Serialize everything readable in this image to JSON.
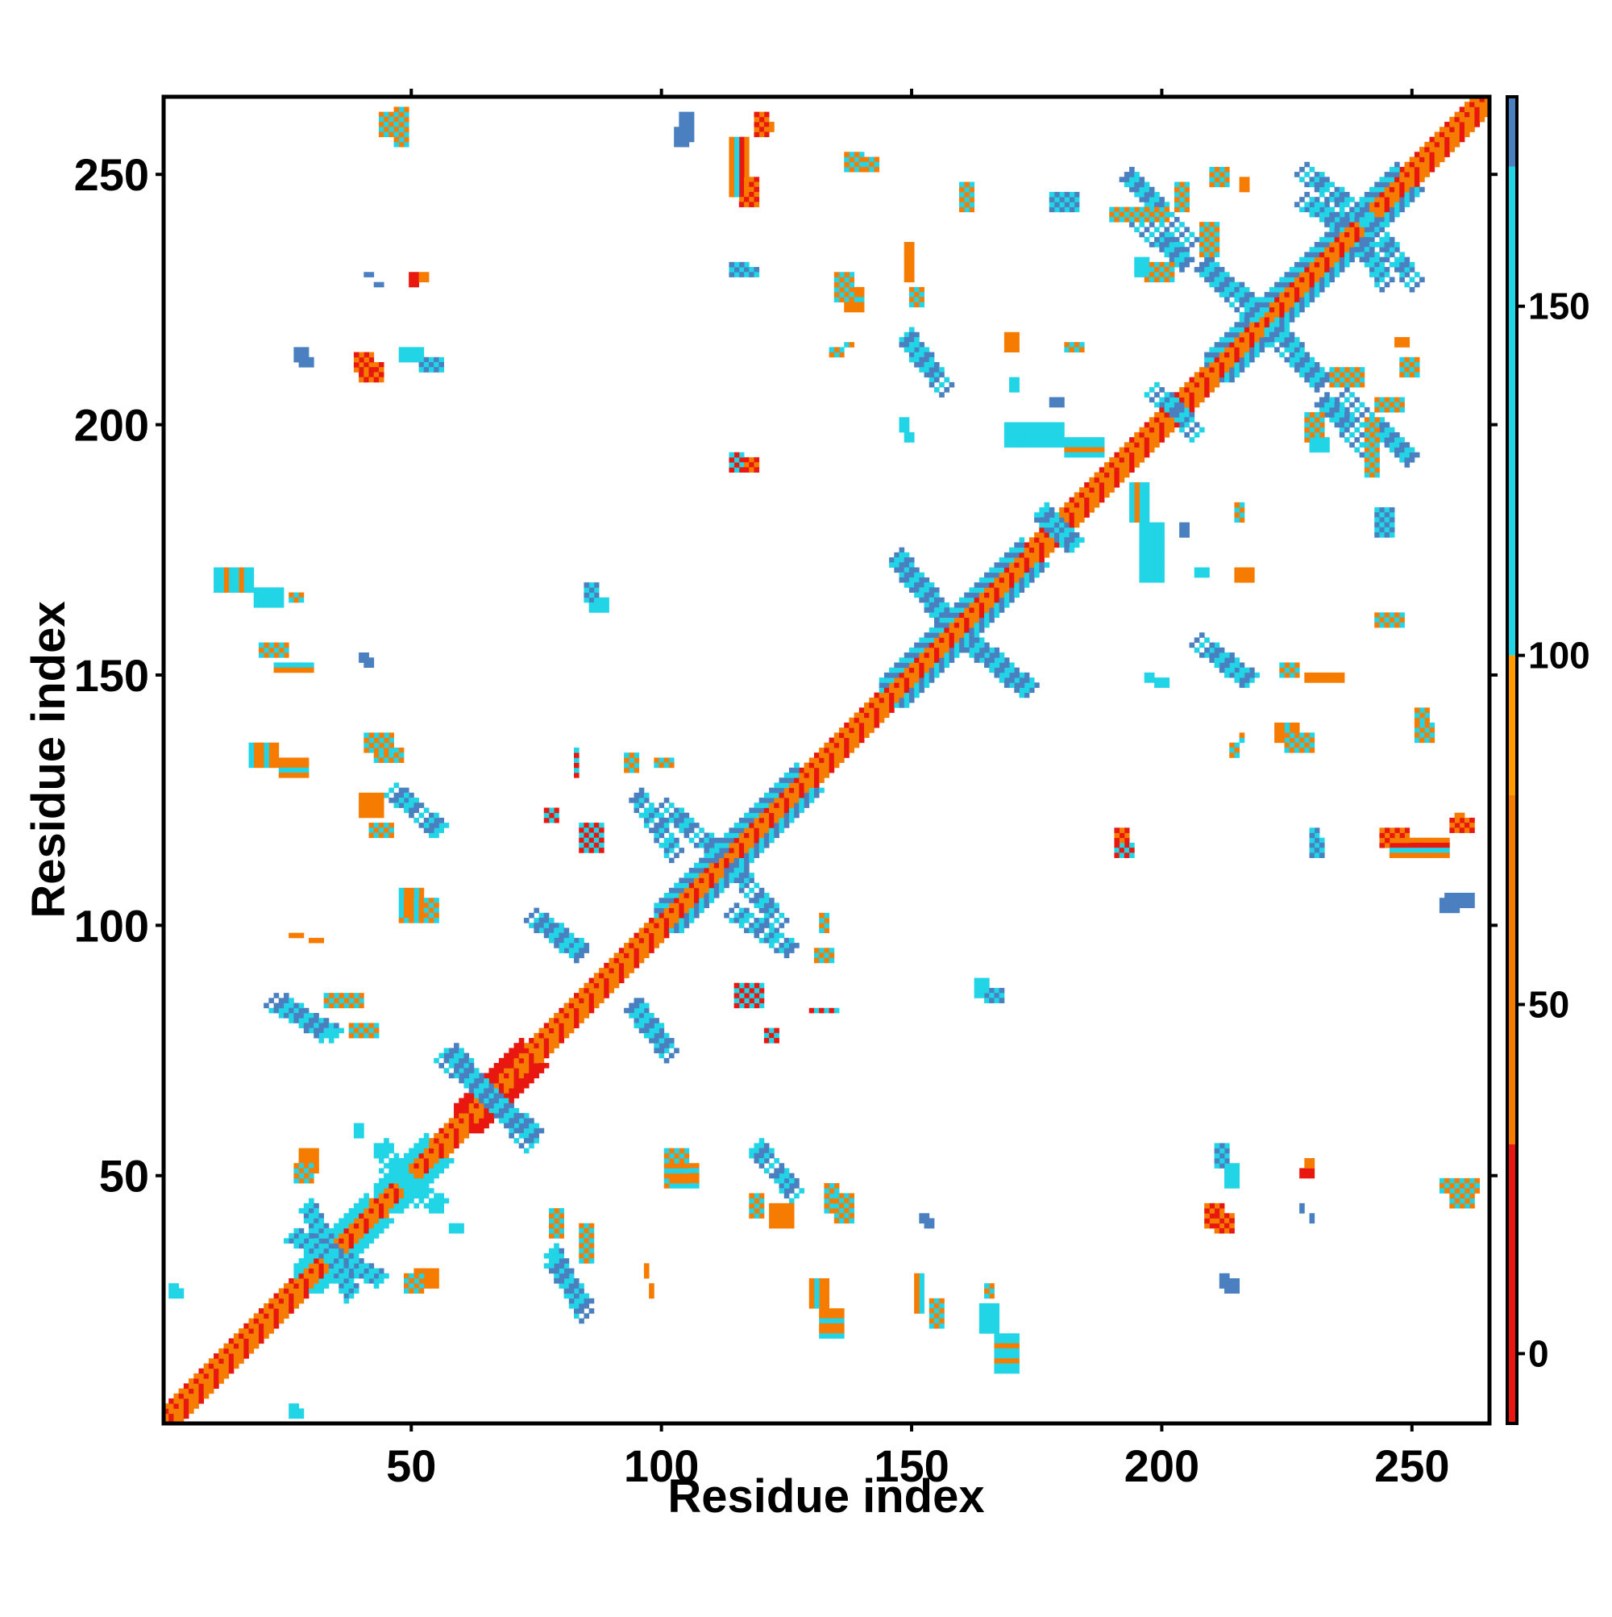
{
  "chart_data": {
    "type": "heatmap",
    "title": "",
    "xlabel": "Residue index",
    "ylabel": "Residue index",
    "xlim": [
      1,
      265
    ],
    "ylim": [
      1,
      265
    ],
    "x_ticks": [
      50,
      100,
      150,
      200,
      250
    ],
    "y_ticks": [
      50,
      100,
      150,
      200,
      250
    ],
    "colorbar": {
      "range": [
        -10,
        180
      ],
      "ticks": [
        0,
        50,
        100,
        150
      ],
      "bands": [
        {
          "from": -10,
          "to": 30,
          "color": "#e8170f"
        },
        {
          "from": 30,
          "to": 80,
          "color": "#f57c00"
        },
        {
          "from": 80,
          "to": 100,
          "color": "#ff9a00"
        },
        {
          "from": 100,
          "to": 170,
          "color": "#21d4e6"
        },
        {
          "from": 170,
          "to": 180,
          "color": "#4a7fc0"
        }
      ],
      "top_color": "#ffffff"
    },
    "value_colors": {
      "red": "#e8170f",
      "dark_orange": "#f57c00",
      "orange": "#ff9a00",
      "cyan": "#21d4e6",
      "steel_blue": "#4a7fc0"
    },
    "diagonal": {
      "from": 1,
      "to": 265,
      "width": 3,
      "values": [
        30,
        60,
        15
      ]
    },
    "strands": [
      {
        "center": [
          34,
          34
        ],
        "length": 14,
        "values": [
          160,
          150
        ]
      },
      {
        "center": [
          48,
          48
        ],
        "length": 10,
        "values": [
          150,
          160
        ]
      },
      {
        "center": [
          65,
          65
        ],
        "length": 13,
        "values": [
          160,
          150
        ]
      },
      {
        "center": [
          113,
          113
        ],
        "length": 28,
        "values": [
          170,
          160
        ]
      },
      {
        "center": [
          158,
          158
        ],
        "length": 28,
        "values": [
          170,
          160
        ]
      },
      {
        "center": [
          219,
          219
        ],
        "length": 20,
        "values": [
          160,
          170
        ]
      },
      {
        "center": [
          238,
          238
        ],
        "length": 18,
        "values": [
          170,
          160
        ]
      }
    ],
    "antiparallel_bands": [
      {
        "start": [
          29,
          44
        ],
        "end": [
          38,
          26
        ],
        "width": 2,
        "values": [
          160,
          170
        ]
      },
      {
        "start": [
          44,
          56
        ],
        "end": [
          52,
          45
        ],
        "width": 2,
        "values": [
          150,
          160
        ]
      },
      {
        "start": [
          58,
          75
        ],
        "end": [
          74,
          56
        ],
        "width": 2,
        "values": [
          170,
          150
        ]
      },
      {
        "start": [
          22,
          85
        ],
        "end": [
          35,
          78
        ],
        "width": 2,
        "values": [
          170,
          150
        ]
      },
      {
        "start": [
          48,
          126
        ],
        "end": [
          55,
          119
        ],
        "width": 2,
        "values": [
          170,
          160
        ]
      },
      {
        "start": [
          78,
          33
        ],
        "end": [
          85,
          24
        ],
        "width": 2,
        "values": [
          150,
          170
        ]
      },
      {
        "start": [
          74,
          102
        ],
        "end": [
          84,
          95
        ],
        "width": 2,
        "values": [
          170,
          150
        ]
      },
      {
        "start": [
          94,
          84
        ],
        "end": [
          102,
          74
        ],
        "width": 2,
        "values": [
          170,
          150
        ]
      },
      {
        "start": [
          100,
          124
        ],
        "end": [
          112,
          114
        ],
        "width": 2,
        "values": [
          170,
          160
        ]
      },
      {
        "start": [
          114,
          103
        ],
        "end": [
          126,
          95
        ],
        "width": 2,
        "values": [
          170,
          160
        ]
      },
      {
        "start": [
          119,
          56
        ],
        "end": [
          127,
          46
        ],
        "width": 2,
        "values": [
          160,
          170
        ]
      },
      {
        "start": [
          147,
          174
        ],
        "end": [
          156,
          163
        ],
        "width": 2,
        "values": [
          170,
          160
        ]
      },
      {
        "start": [
          162,
          156
        ],
        "end": [
          173,
          147
        ],
        "width": 2,
        "values": [
          170,
          160
        ]
      },
      {
        "start": [
          149,
          218
        ],
        "end": [
          156,
          208
        ],
        "width": 2,
        "values": [
          160,
          170
        ]
      },
      {
        "start": [
          207,
          157
        ],
        "end": [
          217,
          149
        ],
        "width": 2,
        "values": [
          170,
          150
        ]
      },
      {
        "start": [
          193,
          250
        ],
        "end": [
          206,
          236
        ],
        "width": 2,
        "values": [
          170,
          160
        ]
      },
      {
        "start": [
          209,
          232
        ],
        "end": [
          220,
          222
        ],
        "width": 2,
        "values": [
          170,
          160
        ]
      },
      {
        "start": [
          222,
          218
        ],
        "end": [
          232,
          208
        ],
        "width": 2,
        "values": [
          170,
          160
        ]
      },
      {
        "start": [
          228,
          251
        ],
        "end": [
          241,
          241
        ],
        "width": 2,
        "values": [
          170,
          160
        ]
      },
      {
        "start": [
          240,
          236
        ],
        "end": [
          245,
          228
        ],
        "width": 2,
        "values": [
          170,
          160
        ]
      },
      {
        "start": [
          232,
          205
        ],
        "end": [
          242,
          194
        ],
        "width": 2,
        "values": [
          170,
          160
        ]
      },
      {
        "start": [
          176,
          182
        ],
        "end": [
          183,
          176
        ],
        "width": 2,
        "values": [
          170,
          150
        ]
      },
      {
        "start": [
          203,
          203
        ],
        "end": [
          207,
          198
        ],
        "width": 2,
        "values": [
          170,
          150
        ]
      }
    ],
    "blobs": [
      {
        "x": 40,
        "y": 212,
        "w": 5,
        "h": 4,
        "values": [
          20,
          60
        ]
      },
      {
        "x": 52,
        "y": 213,
        "w": 5,
        "h": 3,
        "values": [
          150,
          170
        ]
      },
      {
        "x": 28,
        "y": 213,
        "w": 3,
        "h": 2,
        "values": [
          170
        ]
      },
      {
        "x": 51,
        "y": 230,
        "w": 3,
        "h": 2,
        "values": [
          30,
          60
        ]
      },
      {
        "x": 41,
        "y": 230,
        "w": 2,
        "h": 1,
        "values": [
          170
        ]
      },
      {
        "x": 44,
        "y": 262,
        "w": 4,
        "h": 5,
        "values": [
          60,
          150
        ]
      },
      {
        "x": 19,
        "y": 167,
        "w": 6,
        "h": 4,
        "values": [
          150,
          160
        ]
      },
      {
        "x": 26,
        "y": 166,
        "w": 3,
        "h": 2,
        "values": [
          60,
          150
        ]
      },
      {
        "x": 23,
        "y": 152,
        "w": 8,
        "h": 2,
        "values": [
          150,
          30,
          60
        ]
      },
      {
        "x": 41,
        "y": 153,
        "w": 2,
        "h": 2,
        "values": [
          170
        ]
      },
      {
        "x": 24,
        "y": 133,
        "w": 6,
        "h": 4,
        "values": [
          60,
          30,
          150
        ]
      },
      {
        "x": 43,
        "y": 135,
        "w": 6,
        "h": 3,
        "values": [
          150,
          60
        ]
      },
      {
        "x": 42,
        "y": 120,
        "w": 5,
        "h": 3,
        "values": [
          60,
          150
        ]
      },
      {
        "x": 48,
        "y": 105,
        "w": 8,
        "h": 5,
        "values": [
          60,
          150
        ]
      },
      {
        "x": 30,
        "y": 97,
        "w": 3,
        "h": 1,
        "values": [
          60
        ]
      },
      {
        "x": 38,
        "y": 80,
        "w": 6,
        "h": 3,
        "values": [
          60,
          150
        ]
      },
      {
        "x": 28,
        "y": 55,
        "w": 4,
        "h": 5,
        "values": [
          60
        ]
      },
      {
        "x": 43,
        "y": 56,
        "w": 3,
        "h": 3,
        "values": [
          150
        ]
      },
      {
        "x": 49,
        "y": 30,
        "w": 4,
        "h": 4,
        "values": [
          60,
          150
        ]
      },
      {
        "x": 58,
        "y": 40,
        "w": 3,
        "h": 2,
        "values": [
          150
        ]
      },
      {
        "x": 3,
        "y": 27,
        "w": 2,
        "h": 2,
        "values": [
          150
        ]
      },
      {
        "x": 26,
        "y": 3,
        "w": 3,
        "h": 2,
        "values": [
          150
        ]
      },
      {
        "x": 84,
        "y": 40,
        "w": 3,
        "h": 8,
        "values": [
          60,
          150
        ]
      },
      {
        "x": 98,
        "y": 28,
        "w": 1,
        "h": 3,
        "values": [
          60
        ]
      },
      {
        "x": 102,
        "y": 52,
        "w": 6,
        "h": 5,
        "values": [
          60,
          150,
          30
        ]
      },
      {
        "x": 132,
        "y": 23,
        "w": 5,
        "h": 6,
        "values": [
          30,
          60,
          150
        ]
      },
      {
        "x": 135,
        "y": 46,
        "w": 4,
        "h": 6,
        "values": [
          150,
          60
        ]
      },
      {
        "x": 122,
        "y": 44,
        "w": 5,
        "h": 5,
        "values": [
          60
        ]
      },
      {
        "x": 154,
        "y": 25,
        "w": 3,
        "h": 6,
        "values": [
          60,
          150
        ]
      },
      {
        "x": 153,
        "y": 41,
        "w": 2,
        "h": 2,
        "values": [
          170
        ]
      },
      {
        "x": 167,
        "y": 18,
        "w": 5,
        "h": 8,
        "values": [
          150,
          160,
          60
        ]
      },
      {
        "x": 84,
        "y": 120,
        "w": 5,
        "h": 6,
        "values": [
          150,
          20
        ]
      },
      {
        "x": 99,
        "y": 133,
        "w": 4,
        "h": 2,
        "values": [
          60,
          150
        ]
      },
      {
        "x": 86,
        "y": 165,
        "w": 4,
        "h": 3,
        "values": [
          150,
          160
        ]
      },
      {
        "x": 130,
        "y": 83,
        "w": 6,
        "h": 1,
        "values": [
          20,
          150
        ]
      },
      {
        "x": 121,
        "y": 79,
        "w": 3,
        "h": 3,
        "values": [
          20,
          150
        ]
      },
      {
        "x": 131,
        "y": 95,
        "w": 4,
        "h": 3,
        "values": [
          60,
          150
        ]
      },
      {
        "x": 116,
        "y": 193,
        "w": 4,
        "h": 3,
        "values": [
          60,
          20
        ]
      },
      {
        "x": 116,
        "y": 249,
        "w": 4,
        "h": 6,
        "values": [
          60,
          20
        ]
      },
      {
        "x": 120,
        "y": 260,
        "w": 3,
        "h": 2,
        "values": [
          60
        ]
      },
      {
        "x": 103,
        "y": 259,
        "w": 3,
        "h": 4,
        "values": [
          170
        ]
      },
      {
        "x": 116,
        "y": 231,
        "w": 4,
        "h": 2,
        "values": [
          150,
          170
        ]
      },
      {
        "x": 137,
        "y": 227,
        "w": 4,
        "h": 5,
        "values": [
          60,
          30,
          150
        ]
      },
      {
        "x": 137,
        "y": 216,
        "w": 2,
        "h": 1,
        "values": [
          150,
          60
        ]
      },
      {
        "x": 150,
        "y": 227,
        "w": 3,
        "h": 4,
        "values": [
          60,
          150
        ]
      },
      {
        "x": 139,
        "y": 253,
        "w": 5,
        "h": 3,
        "values": [
          60,
          150
        ]
      },
      {
        "x": 149,
        "y": 198,
        "w": 2,
        "h": 2,
        "values": [
          150
        ]
      },
      {
        "x": 165,
        "y": 87,
        "w": 4,
        "h": 3,
        "values": [
          160,
          170
        ]
      },
      {
        "x": 181,
        "y": 216,
        "w": 4,
        "h": 2,
        "values": [
          60,
          150
        ]
      },
      {
        "x": 178,
        "y": 205,
        "w": 3,
        "h": 2,
        "values": [
          170
        ]
      },
      {
        "x": 181,
        "y": 197,
        "w": 8,
        "h": 4,
        "values": [
          150,
          160,
          60
        ]
      },
      {
        "x": 190,
        "y": 243,
        "w": 12,
        "h": 3,
        "values": [
          150,
          60
        ]
      },
      {
        "x": 197,
        "y": 232,
        "w": 6,
        "h": 4,
        "values": [
          150,
          60
        ]
      },
      {
        "x": 208,
        "y": 240,
        "w": 4,
        "h": 7,
        "values": [
          60,
          150
        ]
      },
      {
        "x": 216,
        "y": 249,
        "w": 2,
        "h": 3,
        "values": [
          60
        ]
      },
      {
        "x": 196,
        "y": 180,
        "w": 5,
        "h": 12,
        "values": [
          150,
          160
        ]
      },
      {
        "x": 207,
        "y": 171,
        "w": 3,
        "h": 2,
        "values": [
          150
        ]
      },
      {
        "x": 215,
        "y": 171,
        "w": 4,
        "h": 3,
        "values": [
          60
        ]
      },
      {
        "x": 199,
        "y": 149,
        "w": 3,
        "h": 2,
        "values": [
          150
        ]
      },
      {
        "x": 214,
        "y": 136,
        "w": 2,
        "h": 3,
        "values": [
          60,
          150
        ]
      },
      {
        "x": 225,
        "y": 138,
        "w": 6,
        "h": 4,
        "values": [
          60,
          150
        ]
      },
      {
        "x": 229,
        "y": 150,
        "w": 8,
        "h": 2,
        "values": [
          60,
          30
        ]
      },
      {
        "x": 230,
        "y": 197,
        "w": 4,
        "h": 3,
        "values": [
          150
        ]
      },
      {
        "x": 243,
        "y": 205,
        "w": 6,
        "h": 3,
        "values": [
          60,
          150
        ]
      },
      {
        "x": 248,
        "y": 213,
        "w": 4,
        "h": 4,
        "values": [
          150,
          60
        ]
      },
      {
        "x": 243,
        "y": 183,
        "w": 4,
        "h": 6,
        "values": [
          150,
          170
        ]
      },
      {
        "x": 243,
        "y": 162,
        "w": 6,
        "h": 3,
        "values": [
          30,
          150
        ]
      },
      {
        "x": 251,
        "y": 140,
        "w": 4,
        "h": 4,
        "values": [
          60,
          150
        ]
      },
      {
        "x": 246,
        "y": 117,
        "w": 12,
        "h": 4,
        "values": [
          60,
          20,
          150
        ]
      },
      {
        "x": 258,
        "y": 121,
        "w": 5,
        "h": 3,
        "values": [
          20,
          60
        ]
      },
      {
        "x": 230,
        "y": 117,
        "w": 3,
        "h": 4,
        "values": [
          150,
          170
        ]
      },
      {
        "x": 191,
        "y": 116,
        "w": 4,
        "h": 3,
        "values": [
          20,
          150
        ]
      },
      {
        "x": 213,
        "y": 52,
        "w": 3,
        "h": 5,
        "values": [
          150
        ]
      },
      {
        "x": 211,
        "y": 42,
        "w": 4,
        "h": 4,
        "values": [
          20,
          60
        ]
      },
      {
        "x": 213,
        "y": 29,
        "w": 3,
        "h": 3,
        "values": [
          170
        ]
      },
      {
        "x": 228,
        "y": 51,
        "w": 3,
        "h": 2,
        "values": [
          20
        ]
      },
      {
        "x": 228,
        "y": 44,
        "w": 1,
        "h": 2,
        "values": [
          170
        ]
      },
      {
        "x": 256,
        "y": 49,
        "w": 8,
        "h": 3,
        "values": [
          150,
          60
        ]
      },
      {
        "x": 257,
        "y": 106,
        "w": 6,
        "h": 3,
        "values": [
          170
        ]
      }
    ]
  }
}
